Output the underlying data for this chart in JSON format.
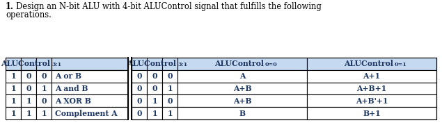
{
  "title_line1": " Design an N-bit ALU with 4-bit ALUControl signal that fulfills the following",
  "title_line2": "operations.",
  "header_bg": "#c5d9f1",
  "header_text_color": "#1f3864",
  "body_text_color": "#1f3864",
  "border_color": "#000000",
  "bg_color": "#ffffff",
  "left_rows": [
    [
      "1",
      "0",
      "0",
      "A or B"
    ],
    [
      "1",
      "0",
      "1",
      "A and B"
    ],
    [
      "1",
      "1",
      "0",
      "A XOR B"
    ],
    [
      "1",
      "1",
      "1",
      "Complement A"
    ]
  ],
  "right_rows": [
    [
      "0",
      "0",
      "0",
      "A",
      "A+1"
    ],
    [
      "0",
      "0",
      "1",
      "A+B",
      "A+B+1"
    ],
    [
      "0",
      "1",
      "0",
      "A+B",
      "A+B'+1"
    ],
    [
      "0",
      "1",
      "1",
      "B",
      "B+1"
    ]
  ],
  "font_size": 7.8,
  "fig_width": 6.35,
  "fig_height": 1.8
}
